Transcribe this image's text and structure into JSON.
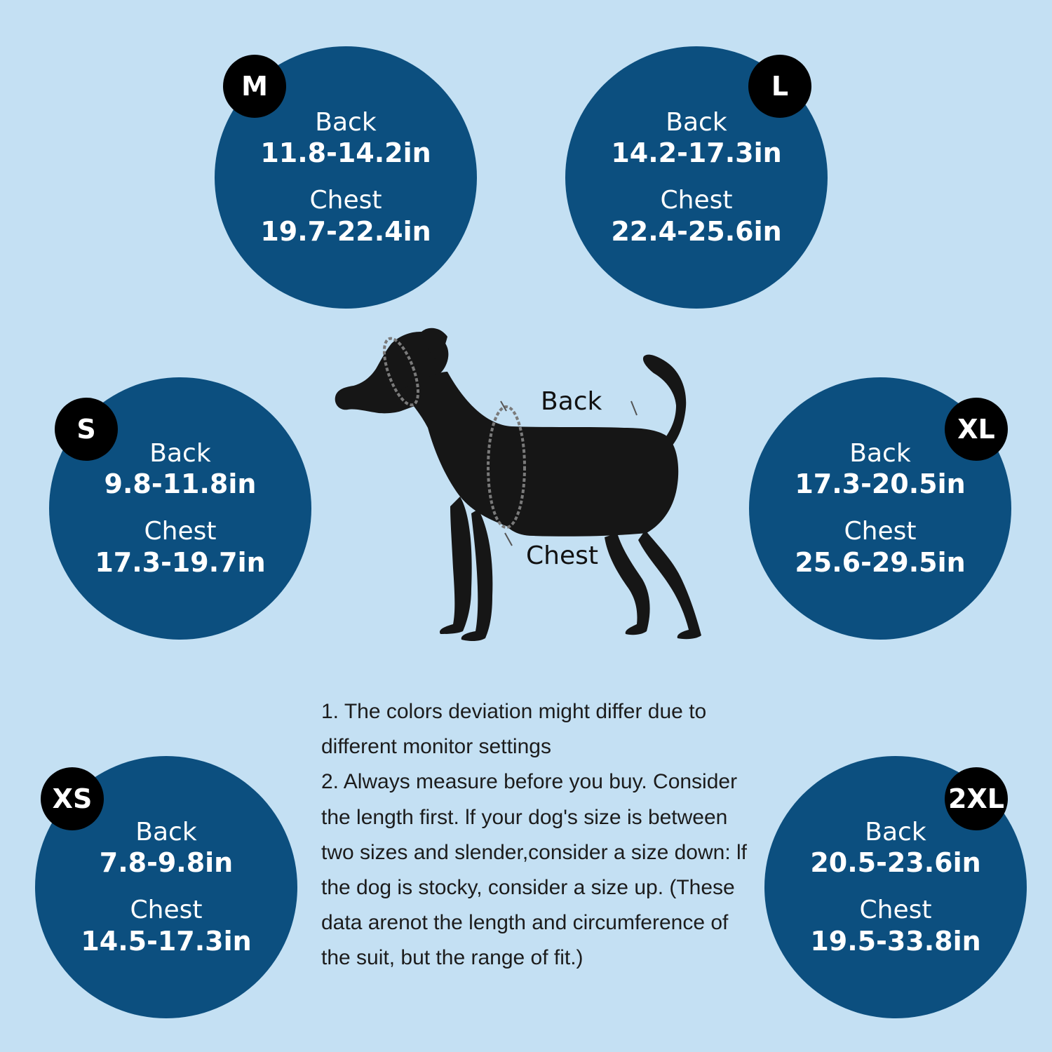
{
  "colors": {
    "background": "#c4e0f3",
    "circle": "#0c4f7f",
    "badge": "#000000",
    "dog": "#161616"
  },
  "sizes": [
    {
      "size": "M",
      "back_label": "Back",
      "back": "11.8-14.2in",
      "chest_label": "Chest",
      "chest": "19.7-22.4in"
    },
    {
      "size": "L",
      "back_label": "Back",
      "back": "14.2-17.3in",
      "chest_label": "Chest",
      "chest": "22.4-25.6in"
    },
    {
      "size": "S",
      "back_label": "Back",
      "back": "9.8-11.8in",
      "chest_label": "Chest",
      "chest": "17.3-19.7in"
    },
    {
      "size": "XL",
      "back_label": "Back",
      "back": "17.3-20.5in",
      "chest_label": "Chest",
      "chest": "25.6-29.5in"
    },
    {
      "size": "XS",
      "back_label": "Back",
      "back": "7.8-9.8in",
      "chest_label": "Chest",
      "chest": "14.5-17.3in"
    },
    {
      "size": "2XL",
      "back_label": "Back",
      "back": "20.5-23.6in",
      "chest_label": "Chest",
      "chest": "19.5-33.8in"
    }
  ],
  "diagram": {
    "back_label": "Back",
    "chest_label": "Chest"
  },
  "notes": {
    "line1": "1. The colors deviation might differ due to different monitor settings",
    "line2": "2. Always measure before you buy. Consider the length first. lf your dog's size is between two sizes and slender,consider a size down: lf the dog is stocky, consider a size up. (These data arenot the length and circumference of the suit, but the range of fit.)"
  }
}
